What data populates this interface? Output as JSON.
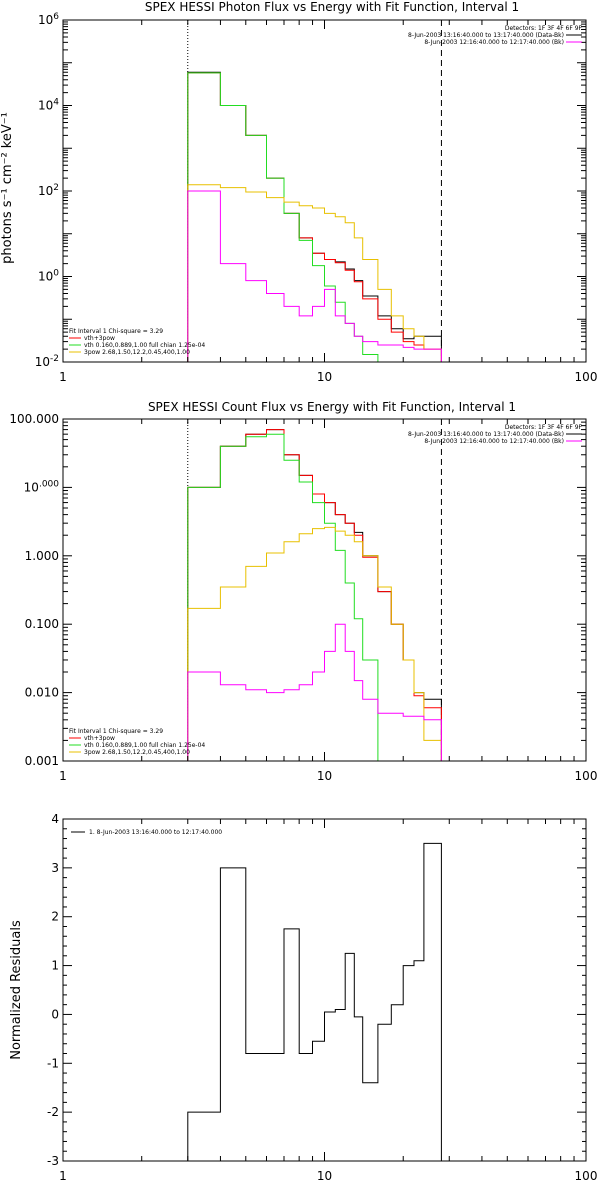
{
  "colors": {
    "black": "#000000",
    "red": "#ff0000",
    "green": "#22dd22",
    "yellow": "#e8c000",
    "magenta": "#ff00ff"
  },
  "chart_data": [
    {
      "type": "line",
      "title": "SPEX HESSI Photon Flux vs Energy with Fit Function, Interval 1",
      "xlabel": "",
      "ylabel": "photons s⁻¹ cm⁻² keV⁻¹",
      "x_scale": "log",
      "y_scale": "log",
      "xlim": [
        1,
        100
      ],
      "ylim": [
        0.01,
        1000000
      ],
      "x_ticks": [
        1,
        10,
        100
      ],
      "x_tick_labels": [
        "1",
        "10",
        "100"
      ],
      "y_ticks": [
        0.01,
        1,
        100,
        10000,
        1000000
      ],
      "y_tick_labels": [
        "10⁻²",
        "10⁰",
        "10²",
        "10⁴",
        "10⁶"
      ],
      "vlines": [
        {
          "x": 3,
          "style": "dotted"
        },
        {
          "x": 28,
          "style": "dashed"
        }
      ],
      "legend_top": {
        "header": "Detectors: 1F 3F 4F 6F 9F",
        "entries": [
          {
            "label": "8-Jun-2003 13:16:40.000 to 13:17:40.000 (Data-Bk)",
            "color": "black"
          },
          {
            "label": "8-Jun-2003 12:16:40.000 to 12:17:40.000 (Bk)",
            "color": "magenta"
          }
        ]
      },
      "legend_bottom": {
        "header": "Fit Interval 1    Chi-square = 3.29",
        "entries": [
          {
            "label": "vth+3pow",
            "color": "red"
          },
          {
            "label": "vth 0.160,0.889,1.00  full chian 1.25e-04",
            "color": "green"
          },
          {
            "label": "3pow 2.68,1.50,12.2,0.45,400,1.00",
            "color": "yellow"
          }
        ]
      },
      "series": [
        {
          "color": "black",
          "edges": [
            3,
            4,
            5,
            6,
            7,
            8,
            9,
            10,
            11,
            12,
            13,
            14,
            16,
            18,
            20,
            22,
            24,
            28
          ],
          "values": [
            60000,
            10000,
            2000,
            200,
            30,
            8,
            3.5,
            2.5,
            2.2,
            1.5,
            0.8,
            0.35,
            0.12,
            0.06,
            0.035,
            0.04,
            0.04
          ]
        },
        {
          "color": "red",
          "edges": [
            3,
            4,
            5,
            6,
            7,
            8,
            9,
            10,
            11,
            12,
            13,
            14,
            16,
            18,
            20,
            22,
            24,
            28
          ],
          "values": [
            58000,
            10000,
            2000,
            200,
            30,
            8,
            3.5,
            2.5,
            2.1,
            1.4,
            0.75,
            0.3,
            0.1,
            0.05,
            0.03,
            0.025,
            0.02
          ]
        },
        {
          "color": "green",
          "edges": [
            3,
            4,
            5,
            6,
            7,
            8,
            9,
            10,
            11,
            12,
            13,
            14,
            16,
            18
          ],
          "values": [
            58000,
            10000,
            2000,
            200,
            30,
            7,
            1.8,
            0.6,
            0.25,
            0.08,
            0.04,
            0.015,
            0.01
          ]
        },
        {
          "color": "yellow",
          "edges": [
            3,
            4,
            5,
            6,
            7,
            8,
            9,
            10,
            11,
            12,
            13,
            14,
            16,
            18,
            20,
            22,
            24,
            28
          ],
          "values": [
            140,
            120,
            95,
            70,
            55,
            45,
            40,
            30,
            25,
            18,
            8,
            2.5,
            0.5,
            0.12,
            0.06,
            0.04,
            0.02
          ]
        },
        {
          "color": "magenta",
          "edges": [
            3,
            4,
            5,
            6,
            7,
            8,
            9,
            10,
            11,
            12,
            13,
            14,
            16,
            18,
            20,
            22,
            24,
            28
          ],
          "values": [
            100,
            2,
            0.8,
            0.4,
            0.2,
            0.12,
            0.2,
            0.5,
            0.12,
            0.08,
            0.04,
            0.03,
            0.025,
            0.025,
            0.022,
            0.02,
            0.02
          ]
        }
      ]
    },
    {
      "type": "line",
      "title": "SPEX HESSI Count Flux vs Energy with Fit Function, Interval 1",
      "xlabel": "",
      "ylabel": "",
      "x_scale": "log",
      "y_scale": "log",
      "xlim": [
        1,
        100
      ],
      "ylim": [
        0.001,
        100
      ],
      "x_ticks": [
        1,
        10,
        100
      ],
      "x_tick_labels": [
        "1",
        "10",
        "100"
      ],
      "y_ticks": [
        0.001,
        0.01,
        0.1,
        1,
        10,
        100
      ],
      "y_tick_labels": [
        "0.001",
        "0.010",
        "0.100",
        "1.000",
        "10.000",
        "100.000"
      ],
      "vlines": [
        {
          "x": 3,
          "style": "dotted"
        },
        {
          "x": 28,
          "style": "dashed"
        }
      ],
      "legend_top": {
        "header": "Detectors: 1F 3F 4F 6F 9F",
        "entries": [
          {
            "label": "8-Jun-2003 13:16:40.000 to 13:17:40.000 (Data-Bk)",
            "color": "black"
          },
          {
            "label": "8-Jun-2003 12:16:40.000 to 12:17:40.000 (Bk)",
            "color": "magenta"
          }
        ]
      },
      "legend_bottom": {
        "header": "Fit Interval 1    Chi-square = 3.29",
        "entries": [
          {
            "label": "vth+3pow",
            "color": "red"
          },
          {
            "label": "vth 0.160,0.889,1.00  full chian 1.25e-04",
            "color": "green"
          },
          {
            "label": "3pow 2.68,1.50,12.2,0.45,400,1.00",
            "color": "yellow"
          }
        ]
      },
      "series": [
        {
          "color": "black",
          "edges": [
            3,
            4,
            5,
            6,
            7,
            8,
            9,
            10,
            11,
            12,
            13,
            14,
            16,
            18,
            20,
            22,
            24,
            28
          ],
          "values": [
            10,
            40,
            60,
            70,
            30,
            15,
            8,
            6,
            4,
            3,
            2.2,
            1,
            0.3,
            0.1,
            0.03,
            0.01,
            0.008
          ]
        },
        {
          "color": "red",
          "edges": [
            3,
            4,
            5,
            6,
            7,
            8,
            9,
            10,
            11,
            12,
            13,
            14,
            16,
            18,
            20,
            22,
            24,
            28
          ],
          "values": [
            10,
            40,
            60,
            70,
            30,
            15,
            8,
            6,
            4,
            3,
            2,
            0.95,
            0.3,
            0.1,
            0.03,
            0.009,
            0.006
          ]
        },
        {
          "color": "green",
          "edges": [
            3,
            4,
            5,
            6,
            7,
            8,
            9,
            10,
            11,
            12,
            13,
            14,
            16
          ],
          "values": [
            10,
            40,
            55,
            60,
            25,
            12,
            6,
            3,
            1.2,
            0.4,
            0.12,
            0.03
          ]
        },
        {
          "color": "yellow",
          "edges": [
            3,
            4,
            5,
            6,
            7,
            8,
            9,
            10,
            11,
            12,
            13,
            14,
            16,
            18,
            20,
            22,
            24,
            28
          ],
          "values": [
            0.17,
            0.35,
            0.7,
            1.1,
            1.6,
            2.1,
            2.5,
            2.6,
            2.3,
            2.0,
            1.6,
            1.0,
            0.35,
            0.1,
            0.03,
            0.01,
            0.002
          ]
        },
        {
          "color": "magenta",
          "edges": [
            3,
            4,
            5,
            6,
            7,
            8,
            9,
            10,
            11,
            12,
            13,
            14,
            16,
            18,
            20,
            22,
            24,
            28
          ],
          "values": [
            0.02,
            0.013,
            0.011,
            0.01,
            0.011,
            0.013,
            0.02,
            0.04,
            0.1,
            0.04,
            0.015,
            0.008,
            0.005,
            0.005,
            0.0045,
            0.0045,
            0.004
          ]
        }
      ]
    },
    {
      "type": "line",
      "title": "",
      "xlabel": "",
      "ylabel": "Normalized Residuals",
      "x_scale": "log",
      "y_scale": "linear",
      "xlim": [
        1,
        100
      ],
      "ylim": [
        -3,
        4
      ],
      "x_ticks": [
        1,
        10,
        100
      ],
      "x_tick_labels": [
        "1",
        "10",
        "100"
      ],
      "y_ticks": [
        -3,
        -2,
        -1,
        0,
        1,
        2,
        3,
        4
      ],
      "y_tick_labels": [
        "-3",
        "-2",
        "-1",
        "0",
        "1",
        "2",
        "3",
        "4"
      ],
      "vlines": [],
      "legend_top_left": {
        "entries": [
          {
            "label": "1.  8-Jun-2003 13:16:40.000 to 12:17:40.000",
            "color": "black"
          }
        ]
      },
      "series": [
        {
          "color": "black",
          "edges": [
            3,
            4,
            5,
            6,
            7,
            8,
            9,
            10,
            11,
            12,
            13,
            14,
            16,
            18,
            20,
            22,
            24,
            28
          ],
          "values": [
            -2.0,
            3.0,
            -0.8,
            -0.8,
            1.75,
            -0.8,
            -0.55,
            0.05,
            0.1,
            1.25,
            -0.05,
            -1.4,
            -0.2,
            0.2,
            1.0,
            1.1,
            3.5
          ],
          "drop_to": -3.2
        }
      ]
    }
  ]
}
